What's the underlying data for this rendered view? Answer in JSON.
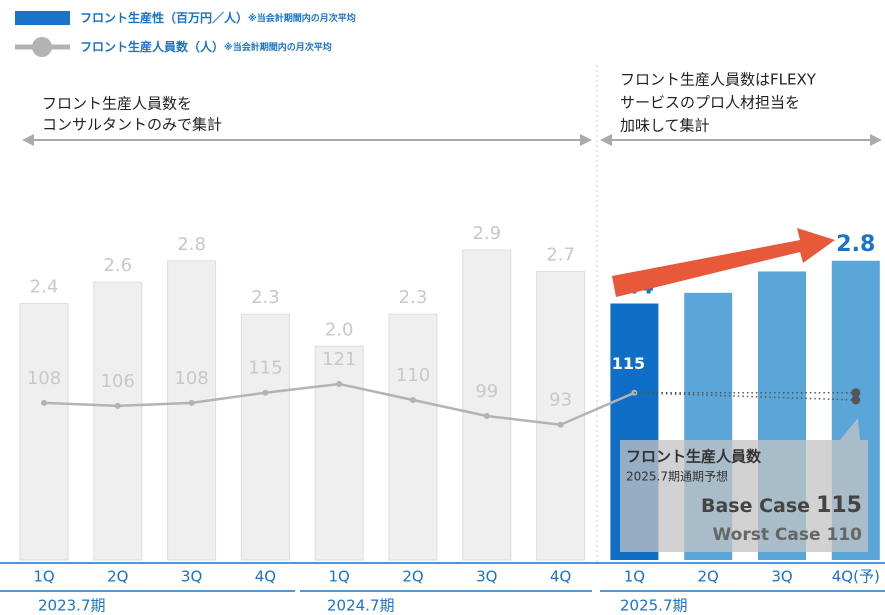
{
  "chart_data": {
    "type": "bar",
    "categories": [
      "1Q",
      "2Q",
      "3Q",
      "4Q",
      "1Q",
      "2Q",
      "3Q",
      "4Q",
      "1Q",
      "2Q",
      "3Q",
      "4Q(予)"
    ],
    "periods": [
      "2023.7期",
      "2024.7期",
      "2025.7期"
    ],
    "legend_note": "※当会計期間内の月次平均",
    "annotations": {
      "left": [
        "フロント生産人員数を",
        "コンサルタントのみで集計"
      ],
      "right": [
        "フロント生産人員数はFLEXY",
        "サービスのプロ人材担当を",
        "加味して集計"
      ]
    },
    "ylim": [
      0,
      5.24
    ],
    "y2lim": [
      0,
      385
    ],
    "series": [
      {
        "name": "フロント生産性（百万円／人）",
        "color": "#1a73c8",
        "colors": [
          "#efefef",
          "#efefef",
          "#efefef",
          "#efefef",
          "#efefef",
          "#efefef",
          "#efefef",
          "#efefef",
          "#0f6fc6",
          "#5ba6d9",
          "#5ba6d9",
          "#5ba6d9"
        ],
        "values": [
          2.4,
          2.6,
          2.8,
          2.3,
          2.0,
          2.3,
          2.9,
          2.7,
          2.4,
          2.5,
          2.7,
          2.8
        ],
        "value_labels": [
          "2.4",
          "2.6",
          "2.8",
          "2.3",
          "2.0",
          "2.3",
          "2.9",
          "2.7",
          "2.4",
          null,
          null,
          "2.8"
        ]
      },
      {
        "name": "フロント生産人員数（人）",
        "color": "#b3b3b3",
        "axis": "y2",
        "values": [
          108,
          106,
          108,
          115,
          121,
          110,
          99,
          93,
          115,
          null,
          null,
          null
        ]
      }
    ],
    "forecast": {
      "title": "フロント生産人員数",
      "subtitle": "2025.7期通期予想",
      "base_label": "Base Case",
      "base_value": 115,
      "worst_label": "Worst Case",
      "worst_value": 110
    }
  }
}
